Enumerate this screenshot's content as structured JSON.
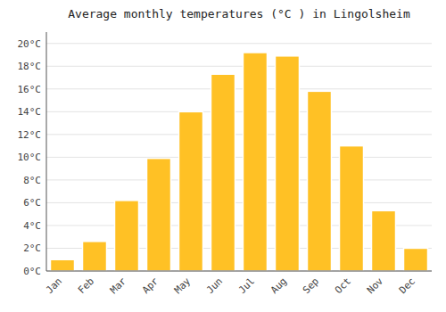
{
  "chart_data": {
    "type": "bar",
    "title": "Average monthly temperatures (°C ) in Lingolsheim",
    "categories": [
      "Jan",
      "Feb",
      "Mar",
      "Apr",
      "May",
      "Jun",
      "Jul",
      "Aug",
      "Sep",
      "Oct",
      "Nov",
      "Dec"
    ],
    "values": [
      1.0,
      2.6,
      6.2,
      9.9,
      14.0,
      17.3,
      19.2,
      18.9,
      15.8,
      11.0,
      5.3,
      2.0
    ],
    "color": "#FFC125",
    "ylim": [
      0,
      21
    ],
    "yticks": [
      {
        "value": 0,
        "label": "0°C"
      },
      {
        "value": 2,
        "label": "2°C"
      },
      {
        "value": 4,
        "label": "4°C"
      },
      {
        "value": 6,
        "label": "6°C"
      },
      {
        "value": 8,
        "label": "8°C"
      },
      {
        "value": 10,
        "label": "10°C"
      },
      {
        "value": 12,
        "label": "12°C"
      },
      {
        "value": 14,
        "label": "14°C"
      },
      {
        "value": 16,
        "label": "16°C"
      },
      {
        "value": 18,
        "label": "18°C"
      },
      {
        "value": 20,
        "label": "20°C"
      }
    ],
    "grid": true
  }
}
